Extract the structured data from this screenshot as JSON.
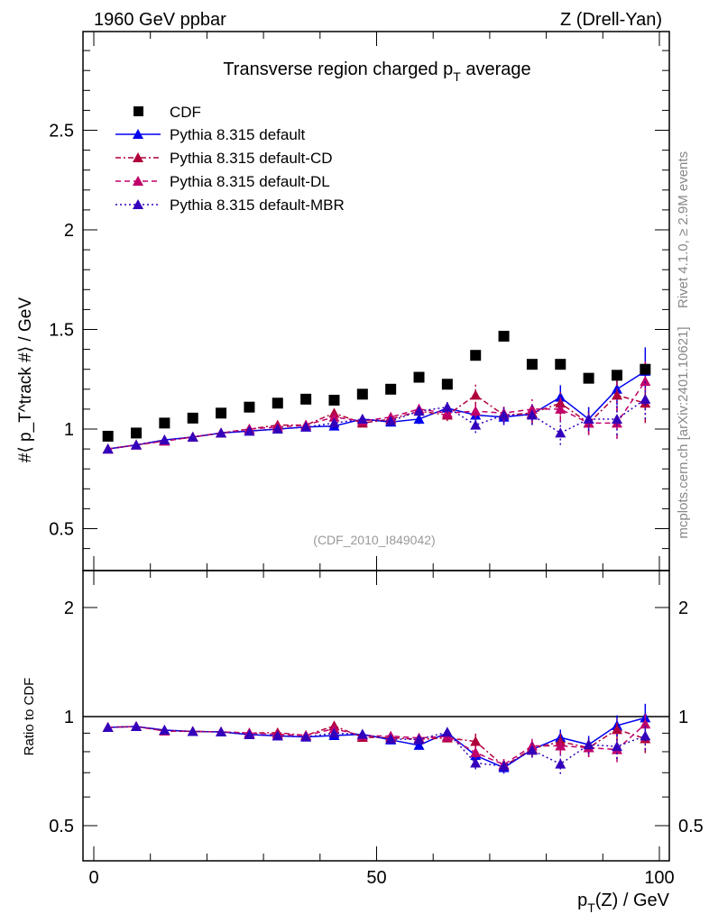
{
  "chart_data": {
    "type": "scatter",
    "header_left": "1960 GeV ppbar",
    "header_right": "Z (Drell-Yan)",
    "title": "Transverse region charged p_T average",
    "title_main": "Transverse region charged p",
    "title_sub": "T",
    "title_after": " average",
    "ylabel": "#⟨ p_T^track #⟩ / GeV",
    "ylabel_parts": {
      "pre": "#⟨ p",
      "sup": "track",
      "sub": "T",
      "post": " #⟩ / GeV"
    },
    "ratio_ylabel": "Ratio to CDF",
    "xlabel": "p_T(Z) / GeV",
    "xlabel_parts": {
      "pre": "p",
      "sub": "T",
      "post": "(Z) / GeV"
    },
    "side_text_top": "Rivet 4.1.0, ≥ 2.9M events",
    "side_text_bottom": "mcplots.cern.ch [arXiv:2401.10621]",
    "analysis_label": "(CDF_2010_I849042)",
    "xlim": [
      -1,
      101
    ],
    "ylim": [
      0.3,
      3.0
    ],
    "ratio_ylim": [
      0.35,
      2.3
    ],
    "x_ticks": [
      "0",
      "50",
      "100"
    ],
    "y_ticks": [
      "0.5",
      "1",
      "1.5",
      "2",
      "2.5"
    ],
    "ratio_y_ticks": [
      "0.5",
      "1",
      "2"
    ],
    "x": [
      2.5,
      7.5,
      12.5,
      17.5,
      22.5,
      27.5,
      32.5,
      37.5,
      42.5,
      47.5,
      52.5,
      57.5,
      62.5,
      67.5,
      72.5,
      77.5,
      82.5,
      87.5,
      92.5,
      97.5
    ],
    "data": {
      "name": "CDF",
      "color": "#000000",
      "values": [
        0.964,
        0.98,
        1.03,
        1.055,
        1.08,
        1.11,
        1.13,
        1.15,
        1.145,
        1.175,
        1.2,
        1.26,
        1.225,
        1.37,
        1.466,
        1.325,
        1.325,
        1.255,
        1.27,
        1.3
      ]
    },
    "series": [
      {
        "name": "Pythia 8.315 default",
        "color": "#0000ee",
        "dash": "",
        "values": [
          0.9,
          0.92,
          0.945,
          0.96,
          0.98,
          0.99,
          1.0,
          1.01,
          1.015,
          1.05,
          1.035,
          1.05,
          1.105,
          1.07,
          1.06,
          1.075,
          1.16,
          1.05,
          1.2,
          1.29
        ],
        "errors": [
          0.005,
          0.005,
          0.006,
          0.007,
          0.008,
          0.01,
          0.01,
          0.012,
          0.015,
          0.02,
          0.02,
          0.025,
          0.03,
          0.04,
          0.04,
          0.05,
          0.06,
          0.06,
          0.08,
          0.12
        ]
      },
      {
        "name": "Pythia 8.315 default-CD",
        "color": "#b0003a",
        "dash": "6,3,2,3",
        "values": [
          0.9,
          0.92,
          0.94,
          0.96,
          0.98,
          1.0,
          1.02,
          1.02,
          1.08,
          1.03,
          1.05,
          1.09,
          1.07,
          1.17,
          1.07,
          1.08,
          1.13,
          1.03,
          1.17,
          1.13
        ],
        "errors": [
          0.005,
          0.005,
          0.006,
          0.007,
          0.008,
          0.01,
          0.01,
          0.012,
          0.015,
          0.02,
          0.02,
          0.025,
          0.03,
          0.06,
          0.04,
          0.05,
          0.06,
          0.06,
          0.08,
          0.1
        ]
      },
      {
        "name": "Pythia 8.315 default-DL",
        "color": "#c0006a",
        "dash": "6,4",
        "values": [
          0.9,
          0.92,
          0.94,
          0.96,
          0.98,
          1.0,
          1.01,
          1.02,
          1.06,
          1.04,
          1.06,
          1.1,
          1.08,
          1.09,
          1.08,
          1.1,
          1.1,
          1.03,
          1.03,
          1.24
        ],
        "errors": [
          0.005,
          0.005,
          0.006,
          0.007,
          0.008,
          0.01,
          0.01,
          0.012,
          0.015,
          0.02,
          0.02,
          0.025,
          0.03,
          0.04,
          0.04,
          0.05,
          0.06,
          0.06,
          0.08,
          0.1
        ]
      },
      {
        "name": "Pythia 8.315 default-MBR",
        "color": "#3300bb",
        "dash": "2,3",
        "values": [
          0.9,
          0.92,
          0.945,
          0.96,
          0.98,
          0.99,
          1.0,
          1.01,
          1.03,
          1.05,
          1.04,
          1.09,
          1.11,
          1.02,
          1.07,
          1.07,
          0.98,
          1.05,
          1.05,
          1.15
        ],
        "errors": [
          0.005,
          0.005,
          0.006,
          0.007,
          0.008,
          0.01,
          0.01,
          0.012,
          0.015,
          0.02,
          0.02,
          0.025,
          0.03,
          0.04,
          0.04,
          0.05,
          0.06,
          0.06,
          0.08,
          0.1
        ]
      }
    ]
  }
}
